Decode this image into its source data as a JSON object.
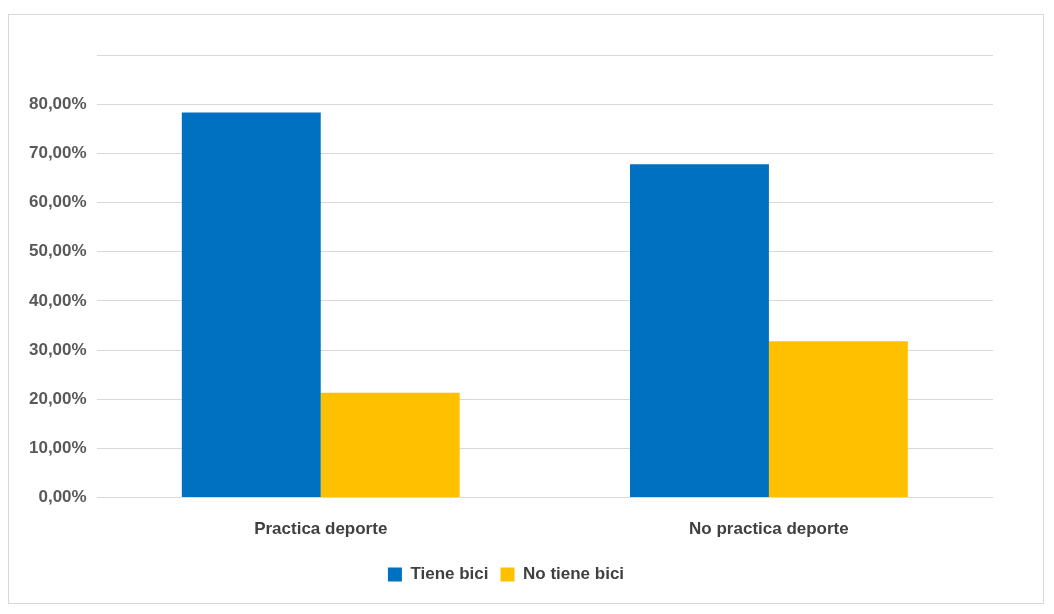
{
  "chart_data": {
    "type": "bar",
    "categories": [
      "Practica deporte",
      "No practica deporte"
    ],
    "series": [
      {
        "name": "Tiene bici",
        "color": "#0070c0",
        "values": [
          78.3,
          67.8
        ]
      },
      {
        "name": "No tiene bici",
        "color": "#ffc000",
        "values": [
          21.3,
          31.8
        ]
      }
    ],
    "ylim": [
      0,
      90
    ],
    "yticks": [
      {
        "value": 0,
        "label": "0,00%"
      },
      {
        "value": 10,
        "label": "10,00%"
      },
      {
        "value": 20,
        "label": "20,00%"
      },
      {
        "value": 30,
        "label": "30,00%"
      },
      {
        "value": 40,
        "label": "40,00%"
      },
      {
        "value": 50,
        "label": "50,00%"
      },
      {
        "value": 60,
        "label": "60,00%"
      },
      {
        "value": 70,
        "label": "70,00%"
      },
      {
        "value": 80,
        "label": "80,00%"
      },
      {
        "value": 90,
        "label": null
      }
    ],
    "grid": "y",
    "legend": "bottom"
  }
}
